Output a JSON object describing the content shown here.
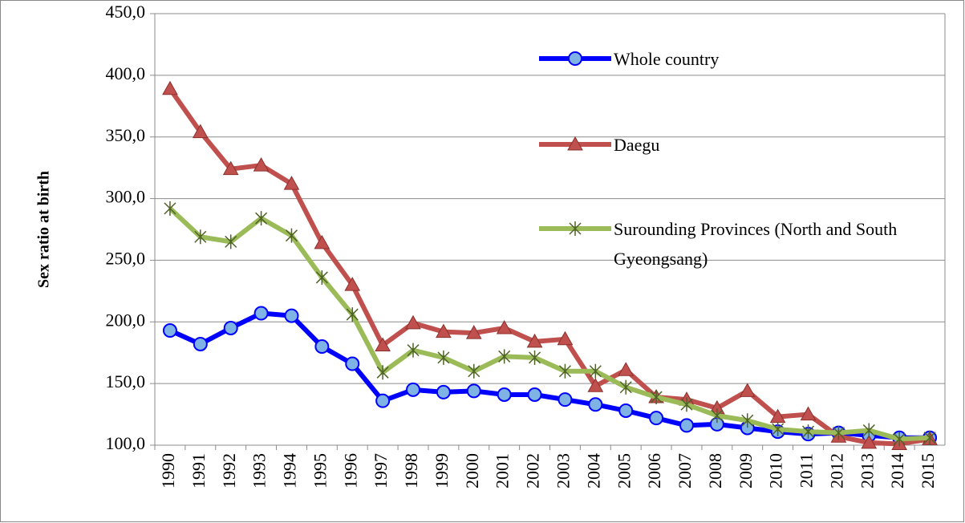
{
  "chart_data": {
    "type": "line",
    "y_label": "Sex ratio at birth",
    "categories": [
      "1990",
      "1991",
      "1992",
      "1993",
      "1994",
      "1995",
      "1996",
      "1997",
      "1998",
      "1999",
      "2000",
      "2001",
      "2002",
      "2003",
      "2004",
      "2005",
      "2006",
      "2007",
      "2008",
      "2009",
      "2010",
      "2011",
      "2012",
      "2013",
      "2014",
      "2015"
    ],
    "ylim": [
      100,
      450
    ],
    "yticks": [
      {
        "value": 100,
        "label": "100,0"
      },
      {
        "value": 150,
        "label": "150,0"
      },
      {
        "value": 200,
        "label": "200,0"
      },
      {
        "value": 250,
        "label": "250,0"
      },
      {
        "value": 300,
        "label": "300,0"
      },
      {
        "value": 350,
        "label": "350,0"
      },
      {
        "value": 400,
        "label": "400,0"
      },
      {
        "value": 450,
        "label": "450,0"
      }
    ],
    "grid": true,
    "legend": "upper right",
    "series": [
      {
        "name": "Whole country",
        "color": "#0000ff",
        "marker": "circle",
        "marker_color": "#7fb2e5",
        "values": [
          193,
          182,
          195,
          207,
          205,
          180,
          166,
          136,
          145,
          143,
          144,
          141,
          141,
          137,
          133,
          128,
          122,
          116,
          117,
          114,
          111,
          109,
          110,
          108,
          106,
          106
        ]
      },
      {
        "name": "Daegu",
        "color": "#c0504d",
        "marker": "triangle",
        "marker_color": "#c0504d",
        "values": [
          389,
          354,
          324,
          327,
          312,
          264,
          230,
          181,
          199,
          192,
          191,
          195,
          184,
          186,
          148,
          161,
          139,
          137,
          130,
          144,
          123,
          125,
          107,
          102,
          101,
          105
        ]
      },
      {
        "name": "Surounding Provinces (North and South Gyeongsang)",
        "color": "#9bbb59",
        "marker": "star",
        "marker_color": "#4f6228",
        "values": [
          292,
          269,
          265,
          284,
          270,
          236,
          206,
          159,
          177,
          171,
          160,
          172,
          171,
          160,
          160,
          147,
          139,
          133,
          124,
          120,
          113,
          111,
          110,
          112,
          105,
          106
        ]
      }
    ]
  }
}
